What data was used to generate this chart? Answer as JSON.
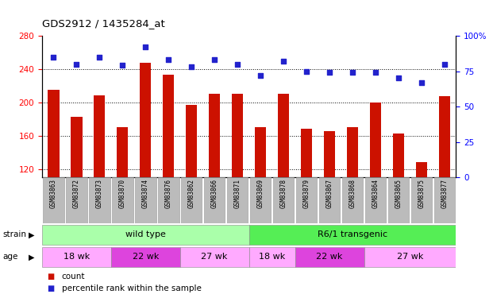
{
  "title": "GDS2912 / 1435284_at",
  "samples": [
    "GSM83863",
    "GSM83872",
    "GSM83873",
    "GSM83870",
    "GSM83874",
    "GSM83876",
    "GSM83862",
    "GSM83866",
    "GSM83871",
    "GSM83869",
    "GSM83878",
    "GSM83879",
    "GSM83867",
    "GSM83868",
    "GSM83864",
    "GSM83865",
    "GSM83875",
    "GSM83877"
  ],
  "counts": [
    215,
    183,
    208,
    170,
    248,
    233,
    197,
    210,
    210,
    170,
    210,
    168,
    165,
    170,
    200,
    163,
    128,
    207
  ],
  "percentiles": [
    85,
    80,
    85,
    79,
    92,
    83,
    78,
    83,
    80,
    72,
    82,
    75,
    74,
    74,
    74,
    70,
    67,
    80
  ],
  "ylim_left": [
    110,
    280
  ],
  "ylim_right": [
    0,
    100
  ],
  "yticks_left": [
    120,
    160,
    200,
    240,
    280
  ],
  "yticks_right": [
    0,
    25,
    50,
    75,
    100
  ],
  "bar_color": "#cc1100",
  "dot_color": "#2222cc",
  "bg_color": "#ffffff",
  "strain_groups": [
    {
      "label": "wild type",
      "start": 0,
      "end": 9,
      "color": "#aaffaa"
    },
    {
      "label": "R6/1 transgenic",
      "start": 9,
      "end": 18,
      "color": "#55ee55"
    }
  ],
  "age_groups": [
    {
      "label": "18 wk",
      "start": 0,
      "end": 3,
      "color": "#ffaaff"
    },
    {
      "label": "22 wk",
      "start": 3,
      "end": 6,
      "color": "#dd44dd"
    },
    {
      "label": "27 wk",
      "start": 6,
      "end": 9,
      "color": "#ffaaff"
    },
    {
      "label": "18 wk",
      "start": 9,
      "end": 11,
      "color": "#ffaaff"
    },
    {
      "label": "22 wk",
      "start": 11,
      "end": 14,
      "color": "#dd44dd"
    },
    {
      "label": "27 wk",
      "start": 14,
      "end": 18,
      "color": "#ffaaff"
    }
  ],
  "tick_label_bg": "#bbbbbb",
  "legend_count_color": "#cc1100",
  "legend_pct_color": "#2222cc"
}
